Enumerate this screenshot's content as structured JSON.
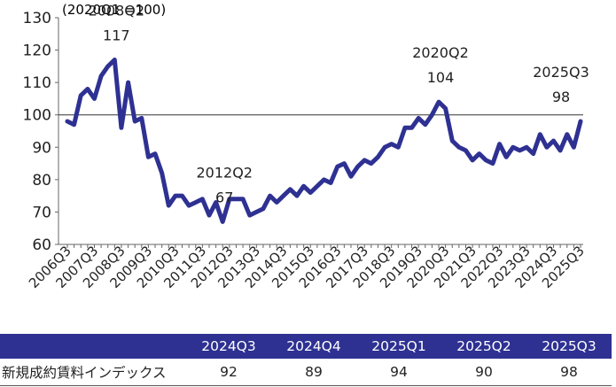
{
  "chart_data": {
    "type": "line",
    "unit_note": "(2020Q1 =100)",
    "ylim": [
      60,
      130
    ],
    "yticks": [
      "60",
      "70",
      "80",
      "90",
      "100",
      "110",
      "120",
      "130"
    ],
    "reference_line": 100,
    "xtick_labels": [
      "2006Q3",
      "2007Q3",
      "2008Q3",
      "2009Q3",
      "2010Q3",
      "2011Q3",
      "2012Q3",
      "2013Q3",
      "2014Q3",
      "2015Q3",
      "2016Q3",
      "2017Q3",
      "2018Q3",
      "2019Q3",
      "2020Q3",
      "2021Q3",
      "2022Q3",
      "2023Q3",
      "2024Q3",
      "2025Q3"
    ],
    "series": [
      {
        "values": [
          98,
          97,
          106,
          108,
          105,
          112,
          115,
          117,
          96,
          110,
          98,
          99,
          87,
          88,
          82,
          72,
          75,
          75,
          72,
          73,
          74,
          69,
          73,
          67,
          74,
          74,
          74,
          69,
          70,
          71,
          75,
          73,
          75,
          77,
          75,
          78,
          76,
          78,
          80,
          79,
          84,
          85,
          81,
          84,
          86,
          85,
          87,
          90,
          91,
          90,
          96,
          96,
          99,
          97,
          100,
          104,
          102,
          92,
          90,
          89,
          86,
          88,
          86,
          85,
          91,
          87,
          90,
          89,
          90,
          88,
          94,
          90,
          92,
          89,
          94,
          90,
          98
        ],
        "color": "#2e3192"
      }
    ],
    "annotations": [
      {
        "text": "2008Q2",
        "index": 7,
        "dy": -2
      },
      {
        "text": "117",
        "index": 7,
        "dy": -1
      },
      {
        "text": "2012Q2",
        "index": 23,
        "dy": -2
      },
      {
        "text": "67",
        "index": 23,
        "dy": -1
      },
      {
        "text": "2020Q2",
        "index": 55,
        "dy": -2
      },
      {
        "text": "104",
        "index": 55,
        "dy": -1
      },
      {
        "text": "2025Q3",
        "index": 76,
        "dy": -2
      },
      {
        "text": "98",
        "index": 76,
        "dy": -1
      }
    ]
  },
  "table": {
    "headers": [
      "2024Q3",
      "2024Q4",
      "2025Q1",
      "2025Q2",
      "2025Q3"
    ],
    "row_label": "新規成約賃料インデックス",
    "values": [
      "92",
      "89",
      "94",
      "90",
      "98"
    ]
  }
}
